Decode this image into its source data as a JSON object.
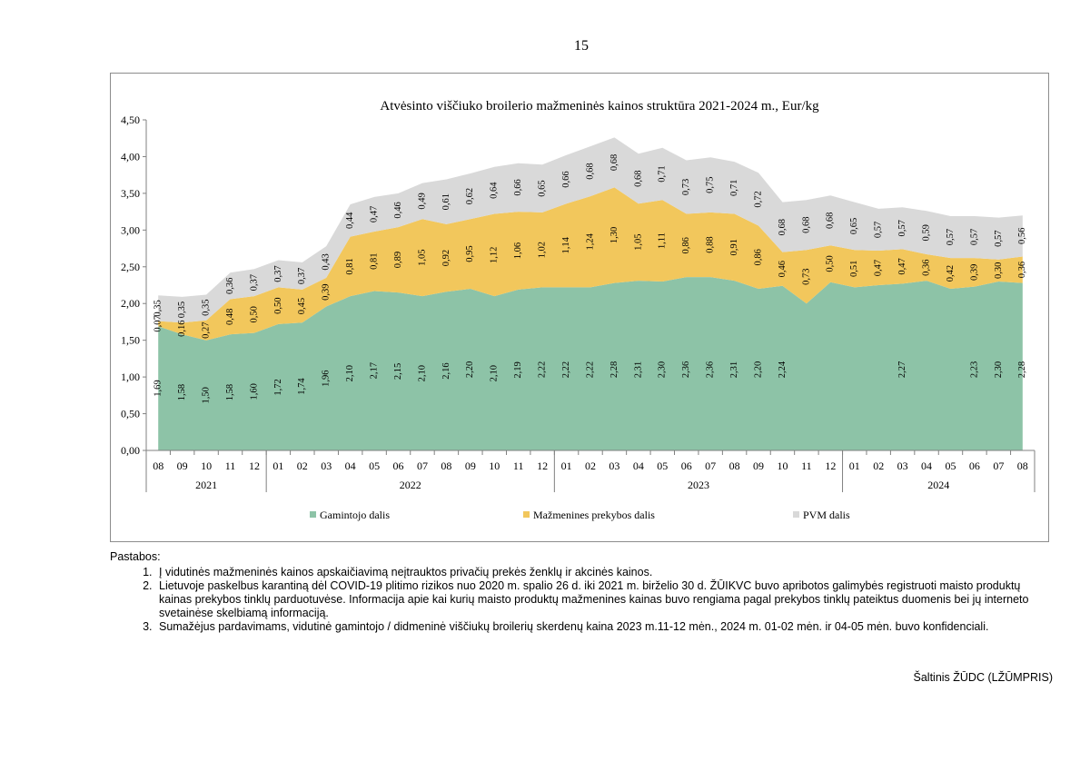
{
  "page_number": "15",
  "chart_data": {
    "type": "area",
    "stacked": true,
    "title": "Atvėsinto viščiuko broilerio mažmeninės kainos struktūra 2021-2024 m., Eur/kg",
    "ylim": [
      0,
      4.5
    ],
    "y_ticks": [
      "0,00",
      "0,50",
      "1,00",
      "1,50",
      "2,00",
      "2,50",
      "3,00",
      "3,50",
      "4,00",
      "4,50"
    ],
    "categories": [
      "08",
      "09",
      "10",
      "11",
      "12",
      "01",
      "02",
      "03",
      "04",
      "05",
      "06",
      "07",
      "08",
      "09",
      "10",
      "11",
      "12",
      "01",
      "02",
      "03",
      "04",
      "05",
      "06",
      "07",
      "08",
      "09",
      "10",
      "11",
      "12",
      "01",
      "02",
      "03",
      "04",
      "05",
      "06",
      "07",
      "08"
    ],
    "year_groups": [
      {
        "label": "2021",
        "count": 5
      },
      {
        "label": "2022",
        "count": 12
      },
      {
        "label": "2023",
        "count": 12
      },
      {
        "label": "2024",
        "count": 8
      }
    ],
    "series": [
      {
        "name": "Gamintojo dalis",
        "color": "#8dc3a7",
        "values": [
          1.69,
          1.58,
          1.5,
          1.58,
          1.6,
          1.72,
          1.74,
          1.96,
          2.1,
          2.17,
          2.15,
          2.1,
          2.16,
          2.2,
          2.1,
          2.19,
          2.22,
          2.22,
          2.22,
          2.28,
          2.31,
          2.3,
          2.36,
          2.36,
          2.31,
          2.2,
          2.24,
          2.0,
          2.29,
          2.22,
          2.25,
          2.27,
          2.31,
          2.2,
          2.23,
          2.3,
          2.28
        ],
        "labels": [
          "1,69",
          "1,58",
          "1,50",
          "1,58",
          "1,60",
          "1,72",
          "1,74",
          "1,96",
          "2,10",
          "2,17",
          "2,15",
          "2,10",
          "2,16",
          "2,20",
          "2,10",
          "2,19",
          "2,22",
          "2,22",
          "2,22",
          "2,28",
          "2,31",
          "2,30",
          "2,36",
          "2,36",
          "2,31",
          "2,20",
          "2,24",
          "",
          "",
          "",
          "",
          "2,27",
          "",
          "",
          "2,23",
          "2,30",
          "2,28"
        ]
      },
      {
        "name": "Mažmenines prekybos dalis",
        "color": "#f2c75c",
        "values": [
          0.07,
          0.16,
          0.27,
          0.48,
          0.5,
          0.5,
          0.45,
          0.39,
          0.81,
          0.81,
          0.89,
          1.05,
          0.92,
          0.95,
          1.12,
          1.06,
          1.02,
          1.14,
          1.24,
          1.3,
          1.05,
          1.11,
          0.86,
          0.88,
          0.91,
          0.86,
          0.46,
          0.73,
          0.5,
          0.51,
          0.47,
          0.47,
          0.36,
          0.42,
          0.39,
          0.3,
          0.36
        ],
        "labels": [
          "0,07",
          "0,16",
          "0,27",
          "0,48",
          "0,50",
          "0,50",
          "0,45",
          "0,39",
          "0,81",
          "0,81",
          "0,89",
          "1,05",
          "0,92",
          "0,95",
          "1,12",
          "1,06",
          "1,02",
          "1,14",
          "1,24",
          "1,30",
          "1,05",
          "1,11",
          "0,86",
          "0,88",
          "0,91",
          "0,86",
          "0,46",
          "0,73",
          "0,50",
          "0,51",
          "0,47",
          "0,47",
          "0,36",
          "0,42",
          "0,39",
          "0,30",
          "0,36"
        ]
      },
      {
        "name": "PVM dalis",
        "color": "#d9d9d9",
        "values": [
          0.35,
          0.35,
          0.35,
          0.36,
          0.37,
          0.37,
          0.37,
          0.43,
          0.44,
          0.47,
          0.46,
          0.49,
          0.61,
          0.62,
          0.64,
          0.66,
          0.65,
          0.66,
          0.68,
          0.68,
          0.68,
          0.71,
          0.73,
          0.75,
          0.71,
          0.72,
          0.68,
          0.68,
          0.68,
          0.65,
          0.57,
          0.57,
          0.59,
          0.57,
          0.57,
          0.57,
          0.56
        ],
        "labels": [
          "0,35",
          "0,35",
          "0,35",
          "0,36",
          "0,37",
          "0,37",
          "0,37",
          "0,43",
          "0,44",
          "0,47",
          "0,46",
          "0,49",
          "0,61",
          "0,62",
          "0,64",
          "0,66",
          "0,65",
          "0,66",
          "0,68",
          "0,68",
          "0,68",
          "0,71",
          "0,73",
          "0,75",
          "0,71",
          "0,72",
          "0,68",
          "0,68",
          "0,68",
          "0,65",
          "0,57",
          "0,57",
          "0,59",
          "0,57",
          "0,57",
          "0,57",
          "0,56"
        ]
      }
    ],
    "legend": [
      "Gamintojo dalis",
      "Mažmenines prekybos dalis",
      "PVM dalis"
    ],
    "legend_position": "bottom"
  },
  "notes": {
    "title": "Pastabos:",
    "items": [
      "Į vidutinės mažmeninės kainos apskaičiavimą neįtrauktos privačių prekės ženklų ir akcinės kainos.",
      "Lietuvoje paskelbus karantiną dėl COVID-19 plitimo rizikos nuo 2020 m. spalio 26 d. iki 2021 m. birželio 30 d. ŽŪIKVC buvo apribotos galimybės registruoti maisto produktų kainas prekybos tinklų parduotuvėse. Informacija apie kai kurių maisto produktų mažmenines kainas buvo rengiama pagal prekybos tinklų pateiktus duomenis bei jų interneto svetainėse skelbiamą informaciją.",
      "Sumažėjus pardavimams, vidutinė gamintojo / didmeninė viščiukų broilerių skerdenų kaina 2023 m.11-12 mėn., 2024 m. 01-02 mėn. ir 04-05 mėn. buvo konfidenciali."
    ]
  },
  "source": "Šaltinis ŽŪDC (LŽŪMPRIS)"
}
